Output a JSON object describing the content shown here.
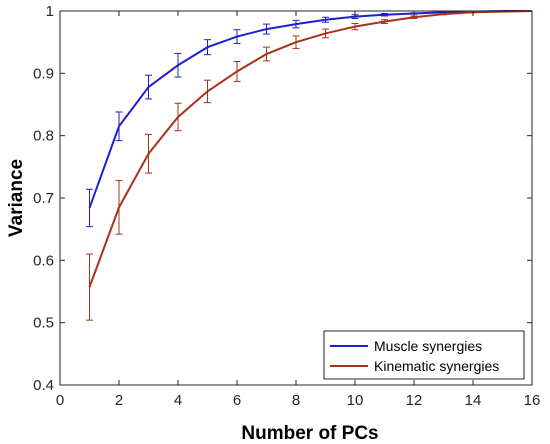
{
  "chart_data": {
    "type": "line",
    "xlabel": "Number of PCs",
    "ylabel": "Variance",
    "xlim": [
      0,
      16
    ],
    "ylim": [
      0.4,
      1
    ],
    "xticks": [
      0,
      2,
      4,
      6,
      8,
      10,
      12,
      14,
      16
    ],
    "yticks": [
      0.4,
      0.5,
      0.6,
      0.7,
      0.8,
      0.9,
      1
    ],
    "ytick_labels": [
      "0.4",
      "0.5",
      "0.6",
      "0.7",
      "0.8",
      "0.9",
      "1"
    ],
    "grid": false,
    "legend_position": "bottom-right",
    "series": [
      {
        "name": "Muscle synergies",
        "color": "#1f1fd0",
        "x": [
          1,
          2,
          3,
          4,
          5,
          6,
          7,
          8,
          9,
          10,
          11,
          12,
          13,
          14,
          15,
          16
        ],
        "values": [
          0.684,
          0.815,
          0.878,
          0.913,
          0.942,
          0.959,
          0.971,
          0.979,
          0.986,
          0.991,
          0.994,
          0.996,
          0.998,
          0.999,
          1.0,
          1.0
        ],
        "error": [
          0.03,
          0.023,
          0.019,
          0.019,
          0.012,
          0.011,
          0.008,
          0.006,
          0.004,
          0.003,
          0.002,
          0.001,
          0.001,
          0.0005,
          0.0,
          0.0
        ]
      },
      {
        "name": "Kinematic synergies",
        "color": "#a83218",
        "x": [
          1,
          2,
          3,
          4,
          5,
          6,
          7,
          8,
          9,
          10,
          11,
          12,
          13,
          14,
          15,
          16
        ],
        "values": [
          0.557,
          0.685,
          0.771,
          0.83,
          0.871,
          0.903,
          0.931,
          0.95,
          0.964,
          0.975,
          0.983,
          0.99,
          0.995,
          0.998,
          0.999,
          1.0
        ],
        "error": [
          0.053,
          0.043,
          0.031,
          0.022,
          0.018,
          0.016,
          0.011,
          0.01,
          0.007,
          0.005,
          0.003,
          0.002,
          0.001,
          0.001,
          0.0005,
          0.0
        ]
      }
    ]
  }
}
